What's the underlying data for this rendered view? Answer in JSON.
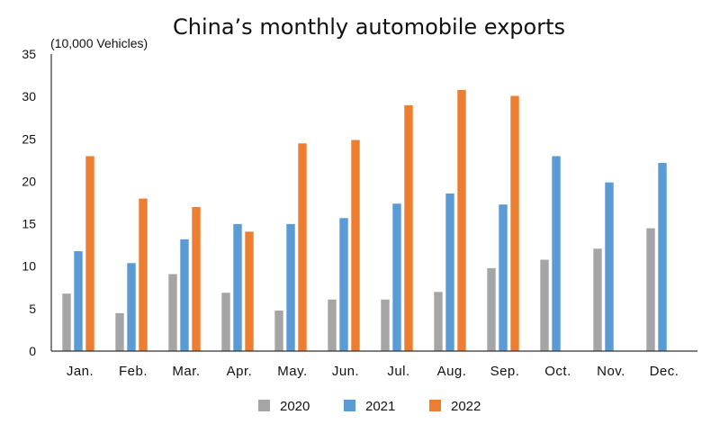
{
  "chart_data": {
    "type": "bar",
    "title": "China’s monthly automobile exports",
    "ylabel": "(10,000 Vehicles)",
    "xlabel": "",
    "ylim": [
      0,
      35
    ],
    "yticks": [
      0,
      5,
      10,
      15,
      20,
      25,
      30,
      35
    ],
    "grid": false,
    "legend": "bottom",
    "categories": [
      "Jan.",
      "Feb.",
      "Mar.",
      "Apr.",
      "May.",
      "Jun.",
      "Jul.",
      "Aug.",
      "Sep.",
      "Oct.",
      "Nov.",
      "Dec."
    ],
    "series": [
      {
        "name": "2020",
        "color": "#a5a5a5",
        "values": [
          6.8,
          4.5,
          9.1,
          6.9,
          4.8,
          6.1,
          6.1,
          7.0,
          9.8,
          10.8,
          12.1,
          14.5
        ]
      },
      {
        "name": "2021",
        "color": "#5b9bd5",
        "values": [
          11.8,
          10.4,
          13.2,
          15.0,
          15.0,
          15.7,
          17.4,
          18.6,
          17.3,
          23.0,
          19.9,
          22.2
        ]
      },
      {
        "name": "2022",
        "color": "#ed7d31",
        "values": [
          23.0,
          18.0,
          17.0,
          14.1,
          24.5,
          24.9,
          29.0,
          30.8,
          30.1,
          null,
          null,
          null
        ]
      }
    ]
  }
}
